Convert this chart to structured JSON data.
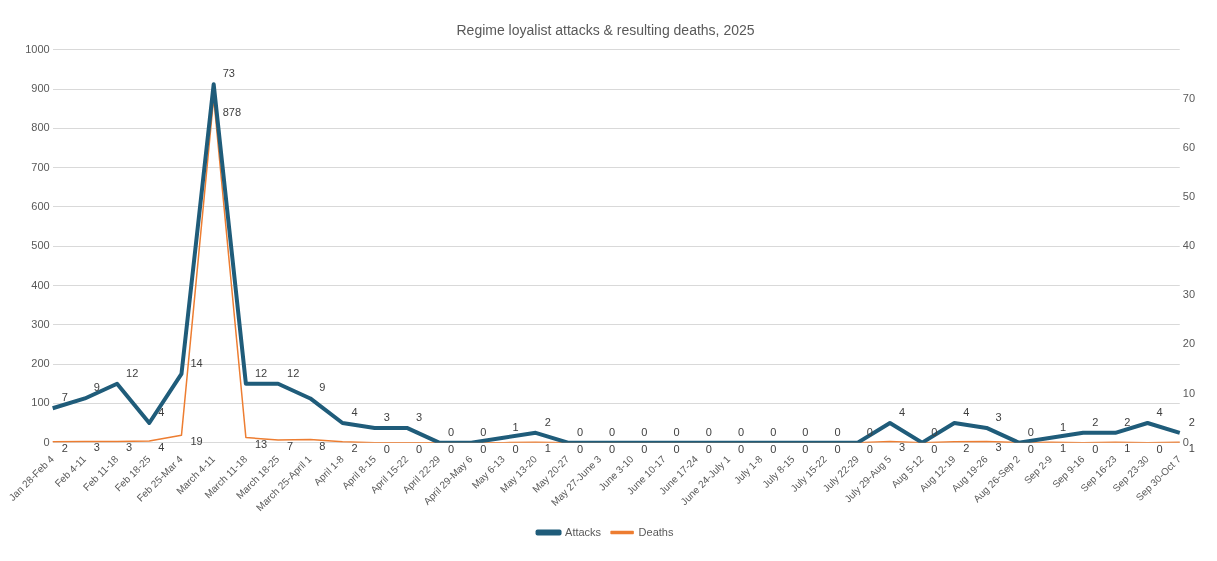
{
  "chart_data": {
    "type": "line",
    "title": "Regime loyalist attacks & resulting deaths, 2025",
    "categories": [
      "Jan 28-Feb 4",
      "Feb 4-11",
      "Feb 11-18",
      "Feb 18-25",
      "Feb 25-Mar 4",
      "March 4-11",
      "March 11-18",
      "March 18-25",
      "March 25-April 1",
      "April 1-8",
      "April 8-15",
      "April 15-22",
      "April 22-29",
      "April 29-May 6",
      "May 6-13",
      "May 13-20",
      "May 20-27",
      "May 27-June 3",
      "June 3-10",
      "June 10-17",
      "June 17-24",
      "June 24-July 1",
      "July 1-8",
      "July 8-15",
      "July 15-22",
      "July 22-29",
      "July 29-Aug 5",
      "Aug 5-12",
      "Aug 12-19",
      "Aug 19-26",
      "Aug 26-Sep 2",
      "Sep 2-9",
      "Sep 9-16",
      "Sep 16-23",
      "Sep 23-30",
      "Sep 30-Oct 7"
    ],
    "series": [
      {
        "name": "Deaths",
        "color": "#ed7d31",
        "values": [
          2,
          3,
          3,
          4,
          19,
          878,
          13,
          7,
          8,
          2,
          0,
          0,
          0,
          0,
          0,
          1,
          0,
          0,
          0,
          0,
          0,
          0,
          0,
          0,
          0,
          0,
          3,
          0,
          2,
          3,
          0,
          1,
          0,
          1,
          0,
          1
        ]
      },
      {
        "name": "Attacks",
        "color": "#1f5c7a",
        "axis": "y2",
        "values": [
          7,
          9,
          12,
          4,
          14,
          73,
          12,
          12,
          9,
          4,
          3,
          3,
          0,
          0,
          1,
          2,
          0,
          0,
          0,
          0,
          0,
          0,
          0,
          0,
          0,
          0,
          4,
          0,
          4,
          3,
          0,
          1,
          2,
          2,
          4,
          2
        ]
      }
    ],
    "ylim": [
      0,
      1000
    ],
    "yticks": [
      0,
      100,
      200,
      300,
      400,
      500,
      600,
      700,
      800,
      900,
      1000
    ],
    "y2lim": [
      0,
      80
    ],
    "y2ticks": [
      0,
      10,
      20,
      30,
      40,
      50,
      60,
      70
    ],
    "grid": "y",
    "legend": "bottom",
    "marker": "none",
    "line_style": "solid",
    "data_labels": true
  }
}
